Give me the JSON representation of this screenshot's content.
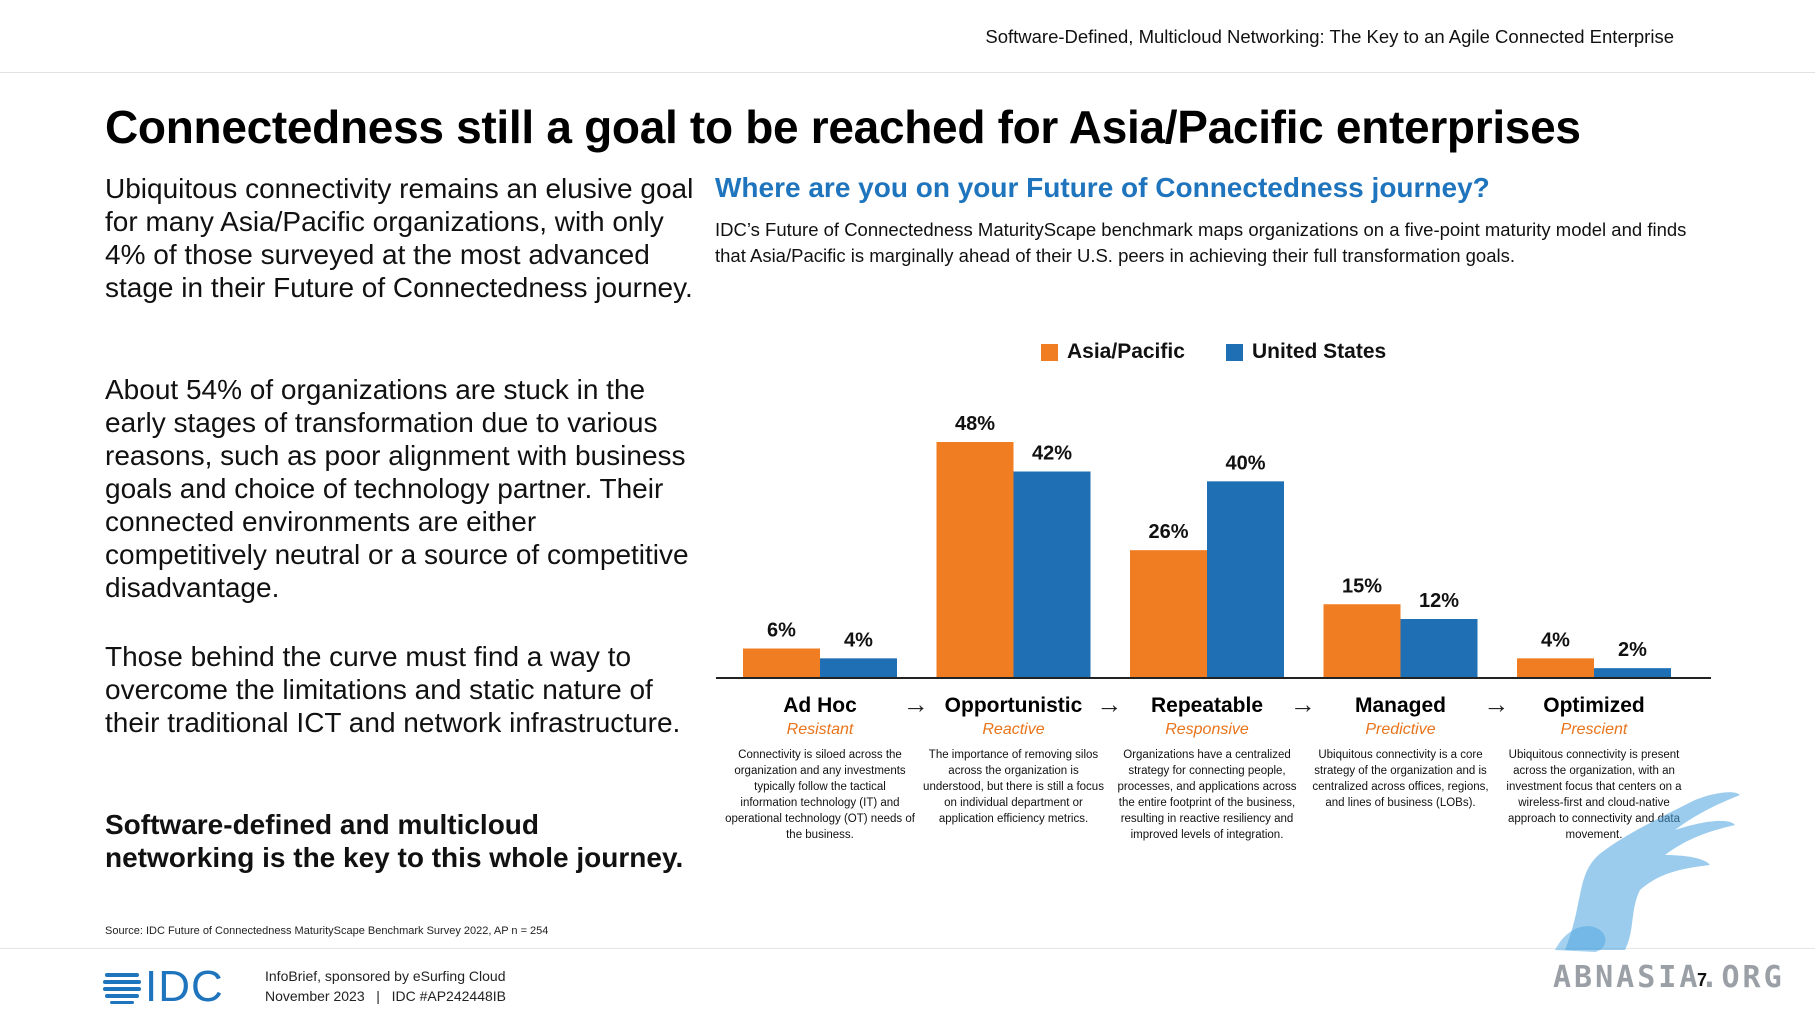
{
  "header": {
    "title": "Software-Defined, Multicloud Networking: The Key to an Agile Connected Enterprise"
  },
  "page_title": "Connectedness still a goal to be reached for Asia/Pacific enterprises",
  "body": {
    "para1": "Ubiquitous connectivity remains an elusive goal for many Asia/Pacific organizations, with only 4% of those surveyed at the most advanced stage in their Future of Connectedness journey.",
    "para2": "About 54% of organizations are stuck in the early stages of transformation due to various reasons, such as poor alignment with business goals and choice of technology partner. Their connected environments are either competitively neutral or a source of competitive disadvantage.",
    "para3": "Those behind the curve must find a way to overcome the limitations and static nature of their traditional ICT and network infrastructure.",
    "bold_statement": "Software-defined and multicloud networking is the key to this whole journey."
  },
  "chart_heading": "Where are you on your Future of Connectedness journey?",
  "chart_subtitle": "IDC’s Future of Connectedness MaturityScape benchmark maps organizations on a five-point maturity model and finds that Asia/Pacific is marginally ahead of their U.S. peers in achieving their full transformation goals.",
  "colors": {
    "asia_pacific": "#f07d22",
    "united_states": "#1f6fb5",
    "accent_blue": "#1f75bd",
    "stage_level": "#e8741c"
  },
  "chart_data": {
    "type": "bar",
    "categories": [
      "Ad Hoc",
      "Opportunistic",
      "Repeatable",
      "Managed",
      "Optimized"
    ],
    "series": [
      {
        "name": "Asia/Pacific",
        "values": [
          6,
          48,
          26,
          15,
          4
        ],
        "labels": [
          "6%",
          "48%",
          "26%",
          "15%",
          "4%"
        ]
      },
      {
        "name": "United States",
        "values": [
          4,
          42,
          40,
          12,
          2
        ],
        "labels": [
          "4%",
          "42%",
          "40%",
          "12%",
          "2%"
        ]
      }
    ],
    "ylim": [
      0,
      50
    ],
    "grid": false,
    "legend_position": "top",
    "stage_levels": [
      "Resistant",
      "Reactive",
      "Responsive",
      "Predictive",
      "Prescient"
    ],
    "stage_descriptions": [
      "Connectivity is siloed across the organization and any investments typically follow the tactical information technology (IT) and operational technology (OT) needs of the business.",
      "The importance of removing silos across the organization is understood, but there is still a focus on individual department or application efficiency metrics.",
      "Organizations have a centralized strategy for connecting people, processes, and applications across the entire footprint of the business, resulting in reactive resiliency and improved levels of integration.",
      "Ubiquitous connectivity is a core strategy of the organization and is centralized across offices, regions, and lines of business (LOBs).",
      "Ubiquitous connectivity is present across the organization, with an investment focus that centers on a wireless-first and cloud-native approach to connectivity and data movement."
    ]
  },
  "source": "Source: IDC Future of Connectedness MaturityScape Benchmark Survey 2022, AP n = 254",
  "footer": {
    "logo_text": "IDC",
    "line1": "InfoBrief, sponsored by eSurfing Cloud",
    "line2": "November 2023   |   IDC #AP242448IB",
    "page_number": "7",
    "watermark": "ABNASIA.ORG"
  }
}
